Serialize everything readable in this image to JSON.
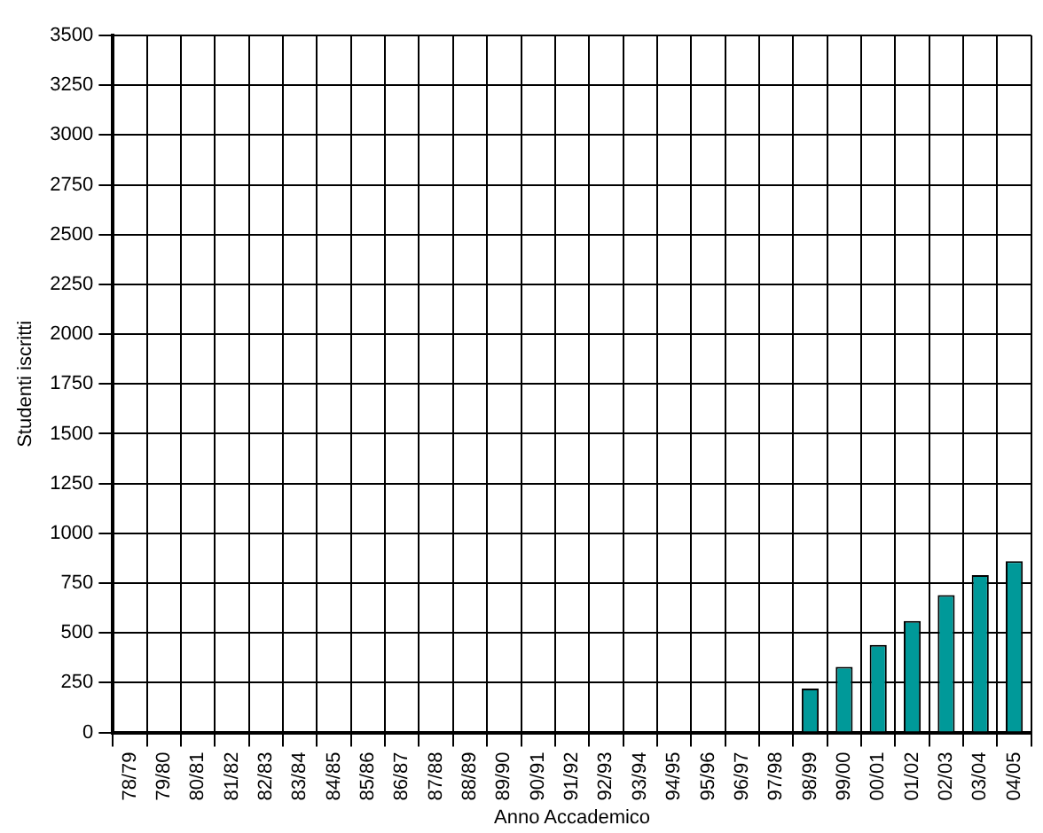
{
  "chart_data": {
    "type": "bar",
    "xlabel": "Anno Accademico",
    "ylabel": "Studenti iscritti",
    "categories": [
      "78/79",
      "79/80",
      "80/81",
      "81/82",
      "82/83",
      "83/84",
      "84/85",
      "85/86",
      "86/87",
      "87/88",
      "88/89",
      "89/90",
      "90/91",
      "91/92",
      "92/93",
      "93/94",
      "94/95",
      "95/96",
      "96/97",
      "97/98",
      "98/99",
      "99/00",
      "00/01",
      "01/02",
      "02/03",
      "03/04",
      "04/05"
    ],
    "values": [
      null,
      null,
      null,
      null,
      null,
      null,
      null,
      null,
      null,
      null,
      null,
      null,
      null,
      null,
      null,
      null,
      null,
      null,
      null,
      null,
      220,
      330,
      440,
      560,
      690,
      790,
      860
    ],
    "color": "#009999",
    "ylim": [
      0,
      3500
    ],
    "yticks": [
      0,
      250,
      500,
      750,
      1000,
      1250,
      1500,
      1750,
      2000,
      2250,
      2500,
      2750,
      3000,
      3250,
      3500
    ],
    "grid": true,
    "legend": false
  }
}
